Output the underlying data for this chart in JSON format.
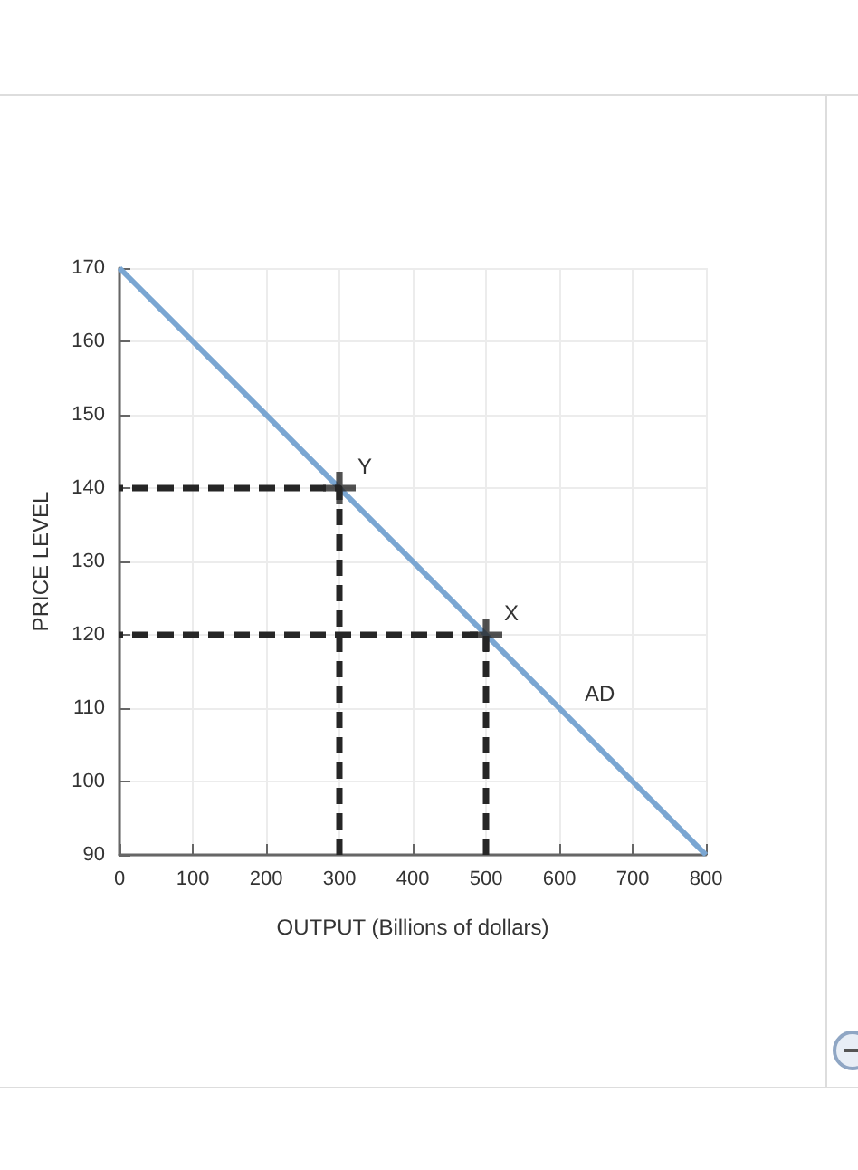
{
  "chart_data": {
    "type": "line",
    "xlabel": "OUTPUT (Billions of dollars)",
    "ylabel": "PRICE LEVEL",
    "xlim": [
      0,
      800
    ],
    "xticks": [
      0,
      100,
      200,
      300,
      400,
      500,
      600,
      700,
      800
    ],
    "ylim": [
      90,
      170
    ],
    "yticks": [
      90,
      100,
      110,
      120,
      130,
      140,
      150,
      160,
      170
    ],
    "grid": true,
    "series": [
      {
        "color": "#7aa6d2",
        "marker": "none",
        "line_style": "solid",
        "x": [
          0,
          800
        ],
        "values": [
          170,
          90
        ]
      },
      {
        "color": "#262626",
        "marker": "none",
        "line_style": "dashed",
        "x": [
          500,
          500,
          0
        ],
        "values": [
          90,
          120,
          120
        ]
      },
      {
        "color": "#262626",
        "marker": "none",
        "line_style": "dashed",
        "x": [
          300,
          300,
          0
        ],
        "values": [
          90,
          140,
          140
        ]
      },
      {
        "type": "scatter",
        "color": "#262626",
        "marker": "cross",
        "x": [
          500,
          300
        ],
        "values": [
          120,
          140
        ]
      }
    ],
    "annotations": [
      {
        "text": "X",
        "x": 500,
        "y": 120
      },
      {
        "text": "Y",
        "x": 300,
        "y": 140
      },
      {
        "text": "AD",
        "x": 610,
        "y": 109
      }
    ]
  }
}
